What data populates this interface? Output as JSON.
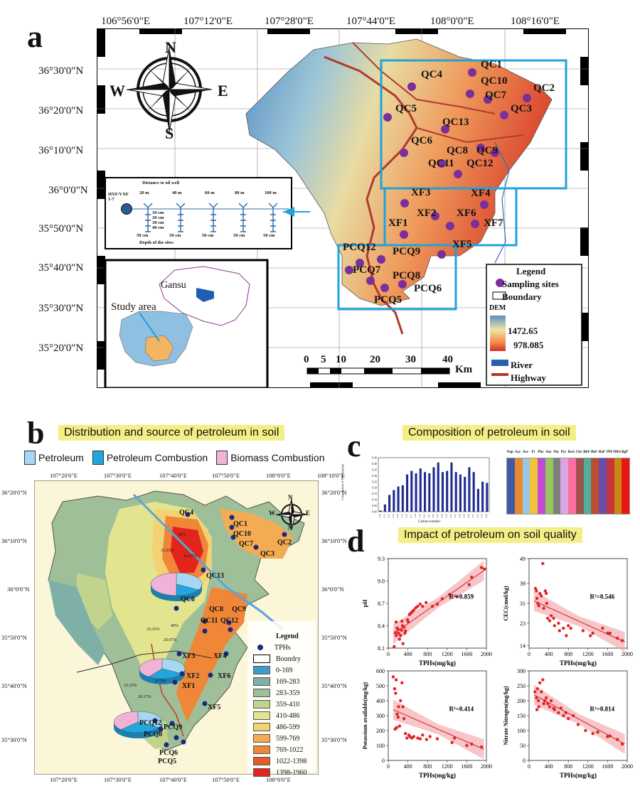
{
  "panel_a": {
    "letter": "a",
    "top_coords": [
      "106°56'0\"E",
      "107°12'0\"E",
      "107°28'0\"E",
      "107°44'0\"E",
      "108°0'0\"E",
      "108°16'0\"E"
    ],
    "left_coords": [
      "36°30'0\"N",
      "36°20'0\"N",
      "36°10'0\"N",
      "36°0'0\"N",
      "35°50'0\"N",
      "35°40'0\"N",
      "35°30'0\"N",
      "35°20'0\"N"
    ],
    "compass": {
      "n": "N",
      "s": "S",
      "e": "E",
      "w": "W"
    },
    "sites": [
      "QC1",
      "QC4",
      "QC10",
      "QC2",
      "QC7",
      "QC5",
      "QC3",
      "QC13",
      "QC6",
      "QC8",
      "QC9",
      "QC11",
      "QC12",
      "XF3",
      "XF4",
      "XF2",
      "XF6",
      "XF7",
      "XF1",
      "XF5",
      "PCQ12",
      "PCQ9",
      "PCQ7",
      "PCQ8",
      "PCQ6",
      "PCQ5"
    ],
    "inset_depth": {
      "title": "Distance to oil well",
      "well_label": "HXF/VXF\n1-7",
      "distances": [
        "20 m",
        "40 m",
        "60 m",
        "80 m",
        "100 m"
      ],
      "depths": [
        "10 cm",
        "20 cm",
        "30 cm",
        "40 cm"
      ],
      "spacing": [
        "50 cm",
        "50 cm",
        "50 cm",
        "50 cm",
        "50 cm"
      ],
      "footer": "Depth of the sites"
    },
    "inset_china": {
      "province": "Gansu",
      "study_area": "Study area"
    },
    "scale": {
      "ticks": [
        "0",
        "5",
        "10",
        "20",
        "30",
        "40"
      ],
      "unit": "Km"
    },
    "legend": {
      "title": "Legend",
      "sampling": "Sampling sites",
      "boundary": "Boundary",
      "dem": "DEM",
      "dem_high": "1472.65",
      "dem_low": "978.085",
      "river": "River",
      "highway": "Highway"
    }
  },
  "panel_b": {
    "letter": "b",
    "title": "Distribution and source of petroleum in soil",
    "sources": [
      "Petroleum",
      "Petroleum Combustion",
      "Biomass Combustion"
    ],
    "source_colors": [
      "#a6d8f5",
      "#1fa7e0",
      "#f0b2d6"
    ],
    "top_coords": [
      "107°20'0\"E",
      "107°30'0\"E",
      "107°40'0\"E",
      "107°50'0\"E",
      "108°0'0\"E",
      "108°10'0\"E"
    ],
    "left_coords": [
      "36°20'0\"N",
      "36°10'0\"N",
      "36°0'0\"N",
      "35°50'0\"N",
      "35°40'0\"N",
      "35°30'0\"N"
    ],
    "compass": {
      "n": "N",
      "s": "S",
      "e": "E",
      "w": "W"
    },
    "pies": [
      {
        "values": [
          33.33,
          16.67,
          50
        ],
        "labels": [
          "33.33%",
          "16.67%",
          "50%"
        ]
      },
      {
        "values": [
          33.33,
          26.67,
          40
        ],
        "labels": [
          "33.33%",
          "26.67%",
          "40%"
        ]
      },
      {
        "values": [
          33.33,
          29.17,
          37.5
        ],
        "labels": [
          "33.33%",
          "29.17%",
          "37.5%"
        ]
      }
    ],
    "sites": [
      "QC4",
      "QC1",
      "QC10",
      "QC2",
      "QC7",
      "QC3",
      "QC13",
      "QC6",
      "QC8",
      "QC9",
      "QC11",
      "QC12",
      "XF3",
      "XF4",
      "XF2",
      "XF6",
      "XF1",
      "XF5",
      "PCQ12",
      "PCQ9",
      "PCQ8",
      "PCQ6",
      "PCQ5"
    ],
    "legend": {
      "title": "Legend",
      "tphs": "TPHs",
      "boundary": "Boundry",
      "classes": [
        "0-169",
        "169-283",
        "283-359",
        "359-410",
        "410-486",
        "486-599",
        "599-769",
        "769-1022",
        "1022-1398",
        "1398-1960"
      ],
      "class_colors": [
        "#3f9ad1",
        "#7fb0a8",
        "#9dbf99",
        "#c1d48e",
        "#e2e58e",
        "#f3d274",
        "#f4ac52",
        "#ef8638",
        "#e85a27",
        "#e2241d"
      ]
    }
  },
  "panel_c": {
    "letter": "c",
    "title": "Composition of petroleum in soil",
    "bar_chart": {
      "type": "bar",
      "xlabel": "Carbon number",
      "ylabel": "Concentration of TPHs (mg/kg)",
      "yticks": [
        "0.45",
        "0.40",
        "0.35",
        "0.30",
        "0.25",
        "0.20",
        "0.15",
        "0.10",
        "0.05",
        "0.00"
      ],
      "categories": [
        "C10",
        "C11",
        "C12",
        "C13",
        "C14",
        "C15",
        "C16",
        "C17",
        "C18",
        "C19",
        "C20",
        "C21",
        "C22",
        "C23",
        "C24",
        "C25",
        "C26",
        "C27",
        "C28",
        "C29",
        "C30",
        "C31",
        "C32",
        "C33",
        "C34"
      ],
      "values": [
        0.01,
        0.06,
        0.14,
        0.18,
        0.21,
        0.22,
        0.31,
        0.34,
        0.32,
        0.36,
        0.33,
        0.32,
        0.37,
        0.41,
        0.33,
        0.34,
        0.41,
        0.33,
        0.31,
        0.29,
        0.37,
        0.33,
        0.19,
        0.25,
        0.24
      ],
      "ylim": [
        0,
        0.45
      ]
    },
    "pah_strip": {
      "labels": [
        "Nap",
        "Acy",
        "Ace",
        "Fl",
        "Phe",
        "Ant",
        "Flu",
        "Pyr",
        "BaA",
        "Chr",
        "BbF",
        "BkF",
        "BaP",
        "INP",
        "DBA",
        "BgP"
      ],
      "colors": [
        "#3d5aa6",
        "#e98a2f",
        "#97c7e5",
        "#f1c33a",
        "#c14bd3",
        "#94c85a",
        "#7f7f7f",
        "#d9a6e0",
        "#ff6fa0",
        "#a0524a",
        "#4fae9d",
        "#b8502f",
        "#6a4da8",
        "#c8343c",
        "#c48a10",
        "#ea1515"
      ]
    }
  },
  "panel_d": {
    "letter": "d",
    "title": "Impact of petroleum on soil quality",
    "chart_data": [
      {
        "type": "scatter",
        "ylabel": "pH",
        "xlabel": "TPHs(mg/kg)",
        "xlim": [
          0,
          2000
        ],
        "ylim": [
          8.1,
          9.3
        ],
        "xticks": [
          "0",
          "400",
          "800",
          "1200",
          "1600",
          "2000"
        ],
        "yticks": [
          "9.3",
          "9.0",
          "8.7",
          "8.4",
          "8.1"
        ],
        "r2": "R²=0.859",
        "fit": [
          [
            100,
            8.29
          ],
          [
            1950,
            9.14
          ]
        ],
        "points": [
          [
            150,
            8.31
          ],
          [
            160,
            8.27
          ],
          [
            180,
            8.37
          ],
          [
            200,
            8.35
          ],
          [
            210,
            8.3
          ],
          [
            230,
            8.22
          ],
          [
            250,
            8.27
          ],
          [
            270,
            8.34
          ],
          [
            290,
            8.4
          ],
          [
            320,
            8.38
          ],
          [
            350,
            8.33
          ],
          [
            390,
            8.48
          ],
          [
            410,
            8.45
          ],
          [
            430,
            8.55
          ],
          [
            460,
            8.57
          ],
          [
            490,
            8.59
          ],
          [
            520,
            8.61
          ],
          [
            560,
            8.64
          ],
          [
            600,
            8.66
          ],
          [
            650,
            8.69
          ],
          [
            700,
            8.66
          ],
          [
            770,
            8.71
          ],
          [
            900,
            8.66
          ],
          [
            1000,
            8.69
          ],
          [
            1100,
            8.76
          ],
          [
            1250,
            8.82
          ],
          [
            1400,
            8.79
          ],
          [
            1650,
            8.95
          ],
          [
            1700,
            9.05
          ],
          [
            1900,
            9.18
          ],
          [
            1960,
            9.16
          ],
          [
            160,
            8.45
          ],
          [
            120,
            8.12
          ],
          [
            300,
            8.16
          ],
          [
            340,
            8.3
          ],
          [
            280,
            8.46
          ]
        ]
      },
      {
        "type": "scatter",
        "ylabel": "CEC(cmol/kg)",
        "xlabel": "TPHs(mg/kg)",
        "xlim": [
          0,
          2000
        ],
        "ylim": [
          13,
          49
        ],
        "xticks": [
          "0",
          "400",
          "800",
          "1200",
          "1600",
          "2000"
        ],
        "yticks": [
          "49",
          "39",
          "31",
          "23",
          "14"
        ],
        "r2": "R²=0.546",
        "fit": [
          [
            100,
            32
          ],
          [
            1950,
            15.5
          ]
        ],
        "points": [
          [
            130,
            37
          ],
          [
            150,
            36
          ],
          [
            160,
            33
          ],
          [
            180,
            31
          ],
          [
            200,
            30
          ],
          [
            220,
            35
          ],
          [
            250,
            34
          ],
          [
            280,
            47
          ],
          [
            300,
            29
          ],
          [
            330,
            36
          ],
          [
            350,
            35
          ],
          [
            360,
            31
          ],
          [
            380,
            25
          ],
          [
            420,
            24
          ],
          [
            450,
            26
          ],
          [
            500,
            25
          ],
          [
            520,
            22
          ],
          [
            600,
            23
          ],
          [
            620,
            20
          ],
          [
            700,
            21
          ],
          [
            760,
            18
          ],
          [
            800,
            22
          ],
          [
            850,
            21
          ],
          [
            1100,
            20
          ],
          [
            1250,
            18
          ],
          [
            1300,
            19
          ],
          [
            1500,
            21
          ],
          [
            1600,
            19
          ],
          [
            1650,
            19
          ],
          [
            1800,
            17
          ],
          [
            1900,
            16
          ]
        ]
      },
      {
        "type": "scatter",
        "ylabel": "Potassium available(mg/kg)",
        "xlabel": "TPHs(mg/kg)",
        "xlim": [
          0,
          2000
        ],
        "ylim": [
          0,
          600
        ],
        "xticks": [
          "0",
          "400",
          "800",
          "1200",
          "1600",
          "2000"
        ],
        "yticks": [
          "600",
          "500",
          "400",
          "300",
          "200",
          "100",
          "0"
        ],
        "r2": "R²=0.414",
        "fit": [
          [
            100,
            340
          ],
          [
            1950,
            75
          ]
        ],
        "points": [
          [
            100,
            560
          ],
          [
            130,
            480
          ],
          [
            150,
            450
          ],
          [
            160,
            540
          ],
          [
            180,
            310
          ],
          [
            200,
            290
          ],
          [
            210,
            360
          ],
          [
            230,
            230
          ],
          [
            250,
            400
          ],
          [
            280,
            520
          ],
          [
            300,
            360
          ],
          [
            320,
            280
          ],
          [
            350,
            180
          ],
          [
            380,
            150
          ],
          [
            420,
            170
          ],
          [
            440,
            160
          ],
          [
            480,
            150
          ],
          [
            520,
            160
          ],
          [
            600,
            150
          ],
          [
            650,
            145
          ],
          [
            700,
            170
          ],
          [
            780,
            140
          ],
          [
            850,
            160
          ],
          [
            1000,
            145
          ],
          [
            1300,
            120
          ],
          [
            1350,
            150
          ],
          [
            1600,
            100
          ],
          [
            1700,
            110
          ],
          [
            1900,
            90
          ],
          [
            140,
            210
          ],
          [
            170,
            220
          ]
        ]
      },
      {
        "type": "scatter",
        "ylabel": "Nitrate Nitrogen(mg/kg)",
        "xlabel": "TPHs(mg/kg)",
        "xlim": [
          0,
          2000
        ],
        "ylim": [
          0,
          300
        ],
        "xticks": [
          "0",
          "400",
          "800",
          "1200",
          "1600",
          "2000"
        ],
        "yticks": [
          "300",
          "250",
          "200",
          "150",
          "100",
          "50",
          "0"
        ],
        "r2": "R²=0.814",
        "fit": [
          [
            100,
            220
          ],
          [
            1950,
            55
          ]
        ],
        "points": [
          [
            120,
            230
          ],
          [
            150,
            210
          ],
          [
            170,
            240
          ],
          [
            190,
            200
          ],
          [
            220,
            260
          ],
          [
            250,
            230
          ],
          [
            280,
            270
          ],
          [
            300,
            190
          ],
          [
            320,
            200
          ],
          [
            350,
            210
          ],
          [
            380,
            190
          ],
          [
            420,
            180
          ],
          [
            450,
            200
          ],
          [
            500,
            175
          ],
          [
            520,
            170
          ],
          [
            600,
            160
          ],
          [
            650,
            175
          ],
          [
            700,
            150
          ],
          [
            750,
            160
          ],
          [
            800,
            140
          ],
          [
            900,
            150
          ],
          [
            1000,
            120
          ],
          [
            1150,
            100
          ],
          [
            1300,
            90
          ],
          [
            1400,
            95
          ],
          [
            1600,
            80
          ],
          [
            1650,
            82
          ],
          [
            1800,
            70
          ],
          [
            1900,
            55
          ],
          [
            160,
            170
          ],
          [
            200,
            180
          ]
        ]
      }
    ]
  }
}
